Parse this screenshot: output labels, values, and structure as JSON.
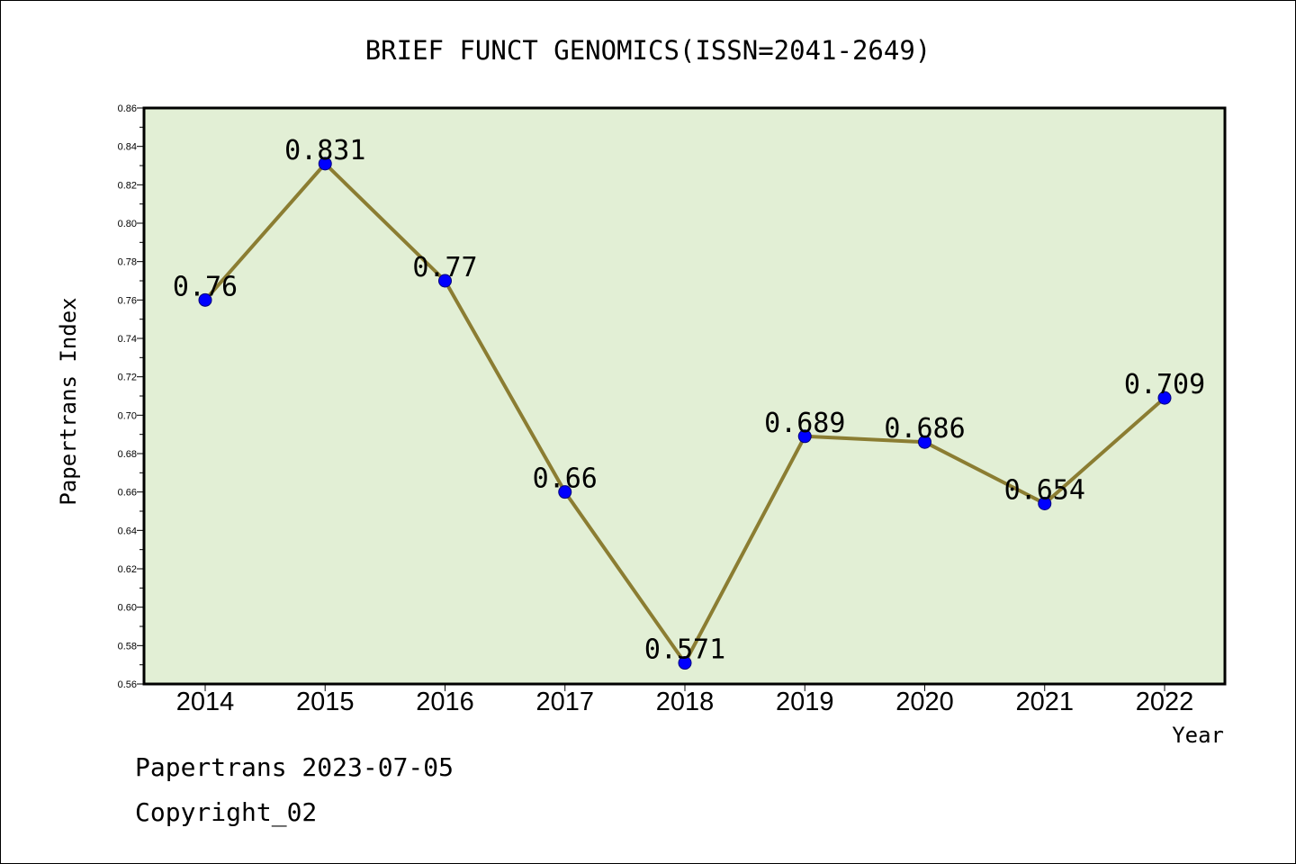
{
  "chart_data": {
    "type": "line",
    "title": "BRIEF FUNCT GENOMICS(ISSN=2041-2649)",
    "xlabel": "Year",
    "ylabel": "Papertrans Index",
    "categories": [
      "2014",
      "2015",
      "2016",
      "2017",
      "2018",
      "2019",
      "2020",
      "2021",
      "2022"
    ],
    "values": [
      0.76,
      0.831,
      0.77,
      0.66,
      0.571,
      0.689,
      0.686,
      0.654,
      0.709
    ],
    "data_labels": [
      "0.76",
      "0.831",
      "0.77",
      "0.66",
      "0.571",
      "0.689",
      "0.686",
      "0.654",
      "0.709"
    ],
    "ylim": [
      0.56,
      0.86
    ],
    "yticks": [
      "0.56",
      "0.58",
      "0.60",
      "0.62",
      "0.64",
      "0.66",
      "0.68",
      "0.70",
      "0.72",
      "0.74",
      "0.76",
      "0.78",
      "0.80",
      "0.82",
      "0.84",
      "0.86"
    ],
    "grid": false,
    "colors": {
      "plot_background": "#e2efd5",
      "line": "#8b7d32",
      "marker": "#0000ff"
    }
  },
  "footer": {
    "line1": "Papertrans 2023-07-05",
    "line2": "Copyright_02"
  }
}
